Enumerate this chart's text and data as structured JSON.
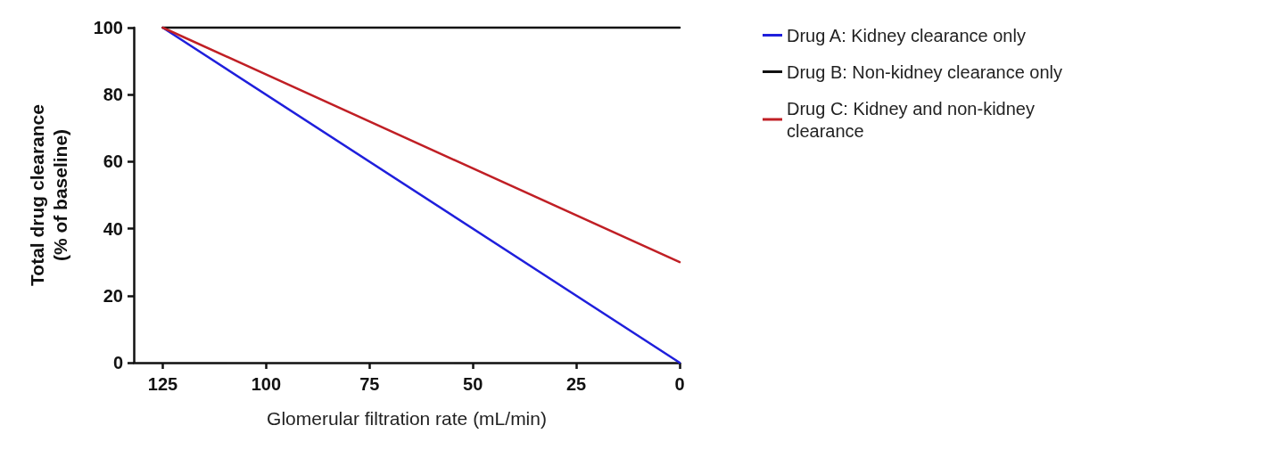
{
  "chart_data": {
    "type": "line",
    "xlabel": "Glomerular filtration rate (mL/min)",
    "ylabel": "Total drug clearance\n(% of baseline)",
    "x": [
      125,
      0
    ],
    "xlim": [
      132,
      0
    ],
    "xticks": [
      125,
      100,
      75,
      50,
      25,
      0
    ],
    "ylim": [
      0,
      100
    ],
    "yticks": [
      0,
      20,
      40,
      60,
      80,
      100
    ],
    "grid": false,
    "legend": "right",
    "marker": "none",
    "line_style": "solid",
    "series": [
      {
        "name": "Drug A: Kidney clearance only",
        "color": "#1f1fdc",
        "values": [
          100,
          0
        ]
      },
      {
        "name": "Drug B: Non-kidney clearance only",
        "color": "#111111",
        "values": [
          100,
          100
        ]
      },
      {
        "name": "Drug C: Kidney and non-kidney clearance",
        "color": "#c01f25",
        "values": [
          100,
          30
        ]
      }
    ]
  }
}
